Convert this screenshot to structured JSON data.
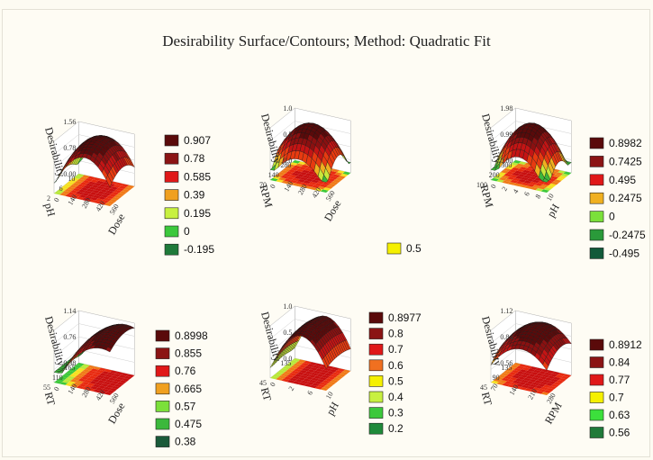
{
  "title": "Desirability Surface/Contours; Method: Quadratic Fit",
  "colors": {
    "background": "#fefcf4",
    "surface_ridge": "#8a1010",
    "surface_mid": "#d01a10",
    "surface_low": "#e8c020",
    "surface_floor": "#3cb82a"
  },
  "chart_data": [
    {
      "type": "surface",
      "zlabel": "Desirability",
      "xlabel": "Dose",
      "ylabel": "pH",
      "z_ticks": [
        "1.56",
        "0.78",
        "0.00"
      ],
      "x_ticks": [
        "560",
        "420",
        "280",
        "140",
        "0"
      ],
      "y_ticks": [
        "10",
        "6",
        "2"
      ],
      "legend": [
        {
          "label": "0.907",
          "color": "#5a0a0a"
        },
        {
          "label": "0.78",
          "color": "#8b1414"
        },
        {
          "label": "0.585",
          "color": "#e01818"
        },
        {
          "label": "0.39",
          "color": "#f0a020"
        },
        {
          "label": "0.195",
          "color": "#c8f040"
        },
        {
          "label": "0",
          "color": "#3cc83c"
        },
        {
          "label": "-0.195",
          "color": "#1f7a3a"
        }
      ]
    },
    {
      "type": "surface",
      "zlabel": "Desirability",
      "xlabel": "Dose",
      "ylabel": "RPM",
      "z_ticks": [
        "1.0",
        "0.5",
        "0.0"
      ],
      "x_ticks": [
        "560",
        "420",
        "280",
        "140",
        "0"
      ],
      "y_ticks": [
        "280",
        "140",
        "70"
      ],
      "legend": [
        {
          "label": "0.5",
          "color": "#f5f000"
        }
      ]
    },
    {
      "type": "surface",
      "zlabel": "Desirability",
      "xlabel": "pH",
      "ylabel": "RPM",
      "z_ticks": [
        "1.98",
        "0.99",
        "0.00"
      ],
      "x_ticks": [
        "10",
        "8",
        "6",
        "4",
        "2",
        "0"
      ],
      "y_ticks": [
        "300",
        "200",
        "100"
      ],
      "legend": [
        {
          "label": "0.8982",
          "color": "#5a0a0a"
        },
        {
          "label": "0.7425",
          "color": "#8b1414"
        },
        {
          "label": "0.495",
          "color": "#e01818"
        },
        {
          "label": "0.2475",
          "color": "#f0b020"
        },
        {
          "label": "0",
          "color": "#7be03a"
        },
        {
          "label": "-0.2475",
          "color": "#2a9a3a"
        },
        {
          "label": "-0.495",
          "color": "#125a3a"
        }
      ]
    },
    {
      "type": "surface",
      "zlabel": "Desirability",
      "xlabel": "Dose",
      "ylabel": "RT",
      "z_ticks": [
        "1.14",
        "0.76",
        "0.38"
      ],
      "x_ticks": [
        "560",
        "420",
        "280",
        "140",
        "0"
      ],
      "y_ticks": [
        "165",
        "110",
        "55"
      ],
      "legend": [
        {
          "label": "0.8998",
          "color": "#5a0a0a"
        },
        {
          "label": "0.855",
          "color": "#8b1414"
        },
        {
          "label": "0.76",
          "color": "#e01818"
        },
        {
          "label": "0.665",
          "color": "#f0a020"
        },
        {
          "label": "0.57",
          "color": "#7be03a"
        },
        {
          "label": "0.475",
          "color": "#3cb83c"
        },
        {
          "label": "0.38",
          "color": "#1a5a3a"
        }
      ]
    },
    {
      "type": "surface",
      "zlabel": "Desirability",
      "xlabel": "pH",
      "ylabel": "RT",
      "z_ticks": [
        "1.0",
        "0.5",
        "0.0"
      ],
      "x_ticks": [
        "10",
        "6",
        "2",
        "0"
      ],
      "y_ticks": [
        "135",
        "45"
      ],
      "legend": [
        {
          "label": "0.8977",
          "color": "#5a0a0a"
        },
        {
          "label": "0.8",
          "color": "#8b1414"
        },
        {
          "label": "0.7",
          "color": "#e01818"
        },
        {
          "label": "0.6",
          "color": "#f07020"
        },
        {
          "label": "0.5",
          "color": "#f5f000"
        },
        {
          "label": "0.4",
          "color": "#c8f040"
        },
        {
          "label": "0.3",
          "color": "#3cc83c"
        },
        {
          "label": "0.2",
          "color": "#1f8a3a"
        }
      ]
    },
    {
      "type": "surface",
      "zlabel": "Desirability",
      "xlabel": "RPM",
      "ylabel": "RT",
      "z_ticks": [
        "1.12",
        "0.84",
        "0.56"
      ],
      "x_ticks": [
        "280",
        "210",
        "140",
        "70"
      ],
      "y_ticks": [
        "135",
        "90",
        "45"
      ],
      "legend": [
        {
          "label": "0.8912",
          "color": "#5a0a0a"
        },
        {
          "label": "0.84",
          "color": "#8b1414"
        },
        {
          "label": "0.77",
          "color": "#e01818"
        },
        {
          "label": "0.7",
          "color": "#f5f000"
        },
        {
          "label": "0.63",
          "color": "#3ce03c"
        },
        {
          "label": "0.56",
          "color": "#1f7a3a"
        }
      ]
    }
  ]
}
